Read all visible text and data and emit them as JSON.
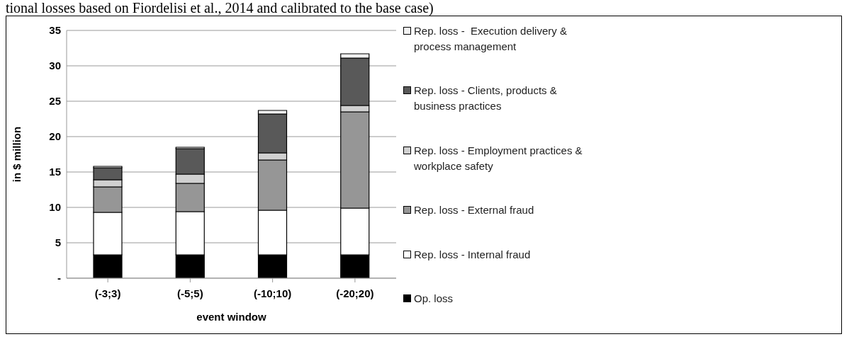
{
  "chart_data": {
    "type": "bar",
    "stacked": true,
    "annotations": [
      "tional losses based on Fiordelisi et al., 2014 and calibrated to the base case)"
    ],
    "xlabel": "event window",
    "ylabel": "in $ million",
    "categories": [
      "(-3;3)",
      "(-5;5)",
      "(-10;10)",
      "(-20;20)"
    ],
    "series": [
      {
        "name": "Op. loss",
        "color": "#000000",
        "values": [
          3.3,
          3.3,
          3.3,
          3.3
        ]
      },
      {
        "name": "Rep. loss - Internal fraud",
        "color": "#ffffff",
        "values": [
          6.0,
          6.1,
          6.3,
          6.6
        ]
      },
      {
        "name": "Rep. loss - External fraud",
        "color": "#969696",
        "values": [
          3.6,
          4.0,
          7.1,
          13.6
        ]
      },
      {
        "name": "Rep. loss - Employment practices & workplace safety",
        "color": "#d0d0d0",
        "values": [
          1.0,
          1.3,
          1.0,
          0.9
        ]
      },
      {
        "name": "Rep. loss - Clients, products & business practices",
        "color": "#595959",
        "values": [
          1.7,
          3.6,
          5.5,
          6.7
        ]
      },
      {
        "name": "Rep. loss -  Execution delivery & process management",
        "color": "#f2f2f2",
        "values": [
          0.2,
          0.2,
          0.5,
          0.6
        ]
      }
    ],
    "ylim": [
      0,
      35
    ],
    "yticks": [
      {
        "value": 0,
        "label": "-"
      },
      5,
      10,
      15,
      20,
      25,
      30,
      35
    ],
    "grid": "y",
    "legend": "right"
  }
}
